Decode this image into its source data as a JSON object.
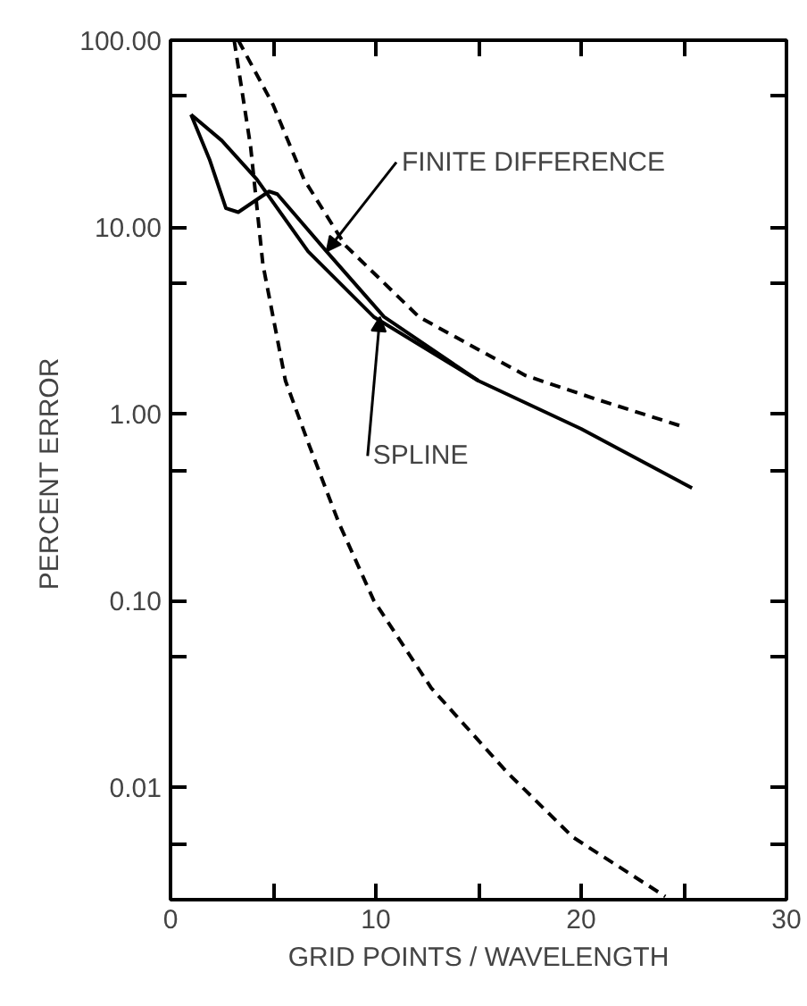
{
  "chart_data": {
    "type": "line",
    "xlabel": "GRID POINTS / WAVELENGTH",
    "ylabel": "PERCENT  ERROR",
    "log": "y",
    "grid": false,
    "xlim": [
      0,
      30
    ],
    "xticks": [
      0,
      {
        "value": 5,
        "label": null
      },
      10,
      {
        "value": 15,
        "label": null
      },
      20,
      {
        "value": 25,
        "label": null
      },
      30
    ],
    "ylim": [
      0.0025,
      100
    ],
    "yticks": [
      {
        "value": 0.005,
        "label": null
      },
      {
        "value": 0.01,
        "label": "0.01"
      },
      {
        "value": 0.05,
        "label": null
      },
      {
        "value": 0.1,
        "label": "0.10"
      },
      {
        "value": 0.5,
        "label": null
      },
      {
        "value": 1,
        "label": "1.00"
      },
      {
        "value": 5,
        "label": null
      },
      {
        "value": 10,
        "label": "10.00"
      },
      {
        "value": 50,
        "label": null
      },
      {
        "value": 100,
        "label": "100.00"
      }
    ],
    "series": [
      {
        "color": "#000000",
        "line_style": "solid",
        "x": [
          1.0,
          2.5,
          4.2,
          6.7,
          9.9,
          15,
          20,
          25.4
        ],
        "values": [
          40,
          29,
          18,
          7.4,
          3.3,
          1.5,
          0.83,
          0.4
        ]
      },
      {
        "color": "#000000",
        "line_style": "solid",
        "x": [
          1.0,
          1.9,
          2.7,
          3.3,
          4.2,
          4.8,
          5.2,
          7.6,
          10.4,
          15
        ],
        "values": [
          40,
          23,
          12.6,
          12,
          14,
          15.5,
          15,
          7.4,
          3.3,
          1.5
        ]
      },
      {
        "color": "#000000",
        "line_style": "dashed",
        "x": [
          3.1,
          3.9,
          4.5,
          5.6,
          6.75,
          8.2,
          9.9,
          12.7,
          16.4,
          19.6,
          24.1
        ],
        "values": [
          100,
          27,
          6.3,
          1.5,
          0.68,
          0.26,
          0.1,
          0.034,
          0.012,
          0.0054,
          0.0026
        ]
      },
      {
        "color": "#000000",
        "line_style": "dashed",
        "x": [
          3.3,
          5.0,
          6.5,
          8.5,
          12.1,
          17.3,
          20.7,
          25
        ],
        "values": [
          100,
          45,
          18,
          8,
          3.3,
          1.6,
          1.2,
          0.85
        ]
      }
    ],
    "annotations": [
      {
        "text": "FINITE DIFFERENCE",
        "x": 7.6,
        "y": 7.4
      },
      {
        "text": "SPLINE",
        "x": 10.2,
        "y": 3.3
      }
    ]
  }
}
